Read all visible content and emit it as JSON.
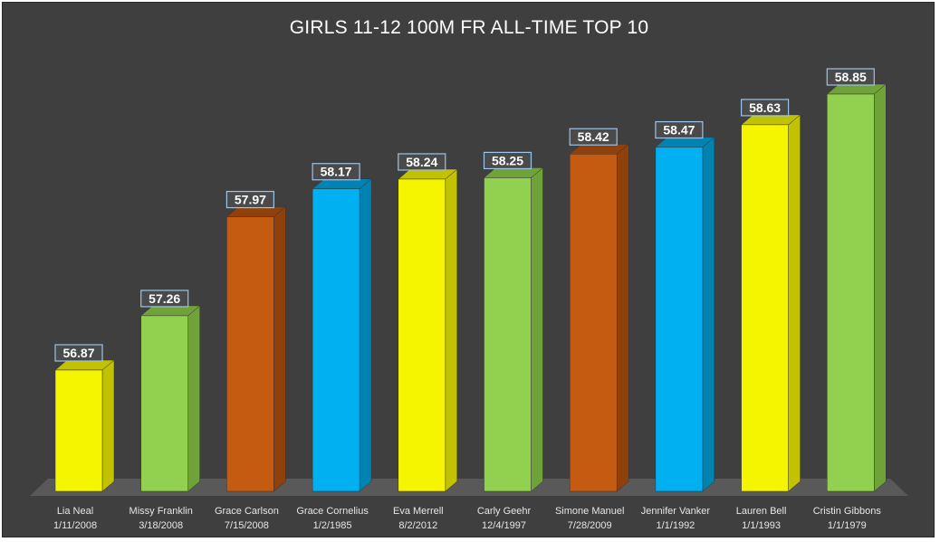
{
  "chart_data": {
    "type": "bar",
    "title": "GIRLS 11-12 100M FR ALL-TIME TOP 10",
    "categories": [
      {
        "name": "Lia Neal",
        "date": "1/11/2008"
      },
      {
        "name": "Missy Franklin",
        "date": "3/18/2008"
      },
      {
        "name": "Grace Carlson",
        "date": "7/15/2008"
      },
      {
        "name": "Grace Cornelius",
        "date": "1/2/1985"
      },
      {
        "name": "Eva Merrell",
        "date": "8/2/2012"
      },
      {
        "name": "Carly Geehr",
        "date": "12/4/1997"
      },
      {
        "name": "Simone Manuel",
        "date": "7/28/2009"
      },
      {
        "name": "Jennifer Vanker",
        "date": "1/1/1992"
      },
      {
        "name": "Lauren Bell",
        "date": "1/1/1993"
      },
      {
        "name": "Cristin Gibbons",
        "date": "1/1/1979"
      }
    ],
    "values": [
      56.87,
      57.26,
      57.97,
      58.17,
      58.24,
      58.25,
      58.42,
      58.47,
      58.63,
      58.85
    ],
    "value_labels": [
      "56.87",
      "57.26",
      "57.97",
      "58.17",
      "58.24",
      "58.25",
      "58.42",
      "58.47",
      "58.63",
      "58.85"
    ],
    "bar_colors": [
      "#f5f500",
      "#92d050",
      "#c55a11",
      "#00b0f0",
      "#f5f500",
      "#92d050",
      "#c55a11",
      "#00b0f0",
      "#f5f500",
      "#92d050"
    ],
    "side_colors": [
      "#c2c200",
      "#6fa33a",
      "#8f400b",
      "#0082b3",
      "#c2c200",
      "#6fa33a",
      "#8f400b",
      "#0082b3",
      "#c2c200",
      "#6fa33a"
    ],
    "ylim": [
      56.0,
      59.0
    ],
    "xlabel": "",
    "ylabel": "",
    "grid": false,
    "legend": "none",
    "background": "#3f3f3f",
    "floor_color": "#595959"
  }
}
